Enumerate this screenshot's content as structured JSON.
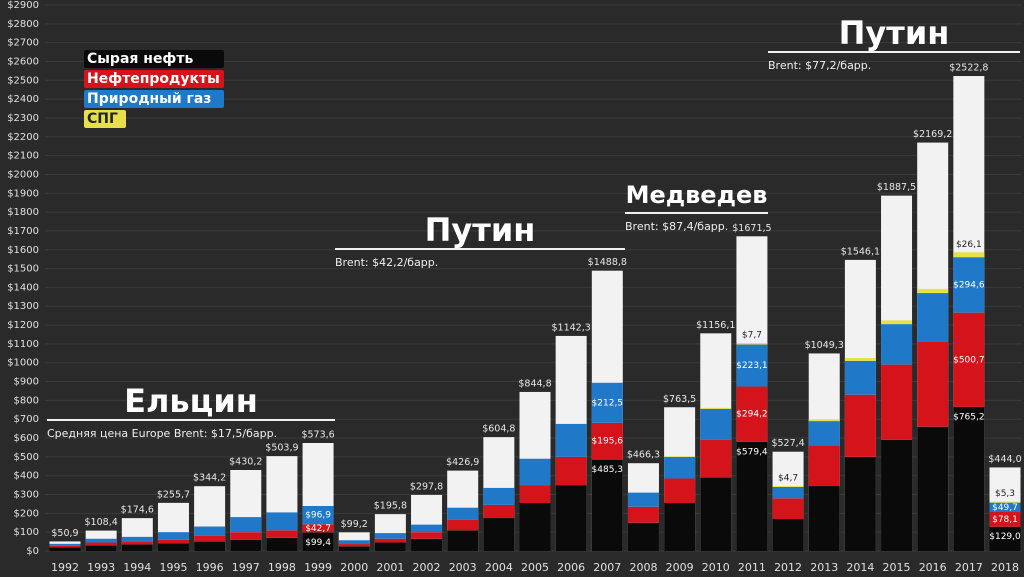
{
  "chart_data": {
    "type": "bar",
    "stacked": true,
    "categories": [
      "1992",
      "1993",
      "1994",
      "1995",
      "1996",
      "1997",
      "1998",
      "1999",
      "2000",
      "2001",
      "2002",
      "2003",
      "2004",
      "2005",
      "2006",
      "2007",
      "2008",
      "2009",
      "2010",
      "2011",
      "2012",
      "2013",
      "2014",
      "2015",
      "2016",
      "2017",
      "2018"
    ],
    "totals": {
      "color": "#f2f2f2",
      "values": [
        50.9,
        108.4,
        174.6,
        255.7,
        344.2,
        430.2,
        503.9,
        573.6,
        99.2,
        195.8,
        297.8,
        426.9,
        604.8,
        844.8,
        1142.3,
        1488.8,
        466.3,
        763.5,
        1156.1,
        1671.5,
        527.4,
        1049.3,
        1546.1,
        1887.5,
        2169.2,
        2522.8,
        444.0
      ],
      "value_labels": [
        "$50,9",
        "$108,4",
        "$174,6",
        "$255,7",
        "$344,2",
        "$430,2",
        "$503,9",
        "$573,6",
        "$99,2",
        "$195,8",
        "$297,8",
        "$426,9",
        "$604,8",
        "$844,8",
        "$1142,3",
        "$1488,8",
        "$466,3",
        "$763,5",
        "$1156,1",
        "$1671,5",
        "$527,4",
        "$1049,3",
        "$1546,1",
        "$1887,5",
        "$2169,2",
        "$2522,8",
        "$444,0"
      ]
    },
    "series": [
      {
        "name": "Сырая нефть",
        "color": "#0a0a0a",
        "values": [
          20,
          30,
          35,
          40,
          50,
          60,
          70,
          99.4,
          25,
          45,
          65,
          110,
          175,
          255,
          350,
          485.3,
          150,
          255,
          390,
          579.4,
          170,
          345,
          500,
          590,
          660,
          765.2,
          129.0
        ],
        "value_labels": [
          null,
          null,
          null,
          null,
          null,
          null,
          null,
          "$99,4",
          null,
          null,
          null,
          null,
          null,
          null,
          null,
          "$485,3",
          null,
          null,
          null,
          "$579,4",
          null,
          null,
          null,
          null,
          null,
          "$765,2",
          "$129,0"
        ]
      },
      {
        "name": "Нефтепродукты",
        "color": "#d4141a",
        "values": [
          8,
          15,
          15,
          20,
          30,
          40,
          40,
          42.7,
          12,
          20,
          35,
          55,
          70,
          95,
          150,
          195.6,
          85,
          130,
          200,
          294.2,
          110,
          215,
          330,
          400,
          450,
          500.7,
          78.1
        ],
        "value_labels": [
          null,
          null,
          null,
          null,
          null,
          null,
          null,
          "$42,7",
          null,
          null,
          null,
          null,
          null,
          null,
          null,
          "$195,6",
          null,
          null,
          null,
          "$294,2",
          null,
          null,
          null,
          null,
          null,
          "$500,7",
          "$78,1"
        ]
      },
      {
        "name": "Природный газ",
        "color": "#1f78c8",
        "values": [
          10,
          20,
          25,
          40,
          50,
          80,
          95,
          96.9,
          20,
          30,
          40,
          65,
          90,
          140,
          175,
          212.5,
          75,
          115,
          165,
          223.1,
          60,
          130,
          180,
          215,
          260,
          294.6,
          49.7
        ],
        "value_labels": [
          null,
          null,
          null,
          null,
          null,
          null,
          null,
          "$96,9",
          null,
          null,
          null,
          null,
          null,
          null,
          null,
          "$212,5",
          null,
          null,
          null,
          "$223,1",
          null,
          null,
          null,
          null,
          null,
          "$294,6",
          "$49,7"
        ]
      },
      {
        "name": "СПГ",
        "color": "#e8e04a",
        "values": [
          0,
          0,
          0,
          0,
          0,
          0,
          0,
          0,
          0,
          0,
          0,
          0,
          0,
          0,
          0,
          0,
          0,
          3,
          5,
          7.7,
          4.7,
          10,
          15,
          20,
          22,
          26.1,
          5.3
        ],
        "value_labels": [
          null,
          null,
          null,
          null,
          null,
          null,
          null,
          null,
          null,
          null,
          null,
          null,
          null,
          null,
          null,
          null,
          null,
          null,
          null,
          "$7,7",
          "$4,7",
          null,
          null,
          null,
          null,
          "$26,1",
          "$5,3"
        ]
      }
    ],
    "ylim": [
      0,
      2900
    ],
    "yticks": [
      {
        "value": 0,
        "label": "$0"
      },
      {
        "value": 100,
        "label": "$100"
      },
      {
        "value": 200,
        "label": "$200"
      },
      {
        "value": 300,
        "label": "$300"
      },
      {
        "value": 400,
        "label": "$400"
      },
      {
        "value": 500,
        "label": "$500"
      },
      {
        "value": 600,
        "label": "$600"
      },
      {
        "value": 700,
        "label": "$700"
      },
      {
        "value": 800,
        "label": "$800"
      },
      {
        "value": 900,
        "label": "$900"
      },
      {
        "value": 1000,
        "label": "$1000"
      },
      {
        "value": 1100,
        "label": "$1100"
      },
      {
        "value": 1200,
        "label": "$1200"
      },
      {
        "value": 1300,
        "label": "$1300"
      },
      {
        "value": 1400,
        "label": "$1400"
      },
      {
        "value": 1500,
        "label": "$1500"
      },
      {
        "value": 1600,
        "label": "$1600"
      },
      {
        "value": 1700,
        "label": "$1700"
      },
      {
        "value": 1800,
        "label": "$1800"
      },
      {
        "value": 1900,
        "label": "$1900"
      },
      {
        "value": 2000,
        "label": "$2000"
      },
      {
        "value": 2100,
        "label": "$2100"
      },
      {
        "value": 2200,
        "label": "$2200"
      },
      {
        "value": 2300,
        "label": "$2300"
      },
      {
        "value": 2400,
        "label": "$2400"
      },
      {
        "value": 2500,
        "label": "$2500"
      },
      {
        "value": 2600,
        "label": "$2600"
      },
      {
        "value": 2700,
        "label": "$2700"
      },
      {
        "value": 2800,
        "label": "$2800"
      },
      {
        "value": 2900,
        "label": "$2900"
      }
    ],
    "grid": true,
    "annotations": [
      {
        "title": "Ельцин",
        "text": "Средняя цена Europe Brent: $17,5/барр."
      },
      {
        "title": "Путин",
        "text": "Brent: $42,2/барр."
      },
      {
        "title": "Медведев",
        "text": "Brent: $87,4/барр."
      },
      {
        "title": "Путин",
        "text": "Brent: $77,2/барр."
      }
    ]
  }
}
